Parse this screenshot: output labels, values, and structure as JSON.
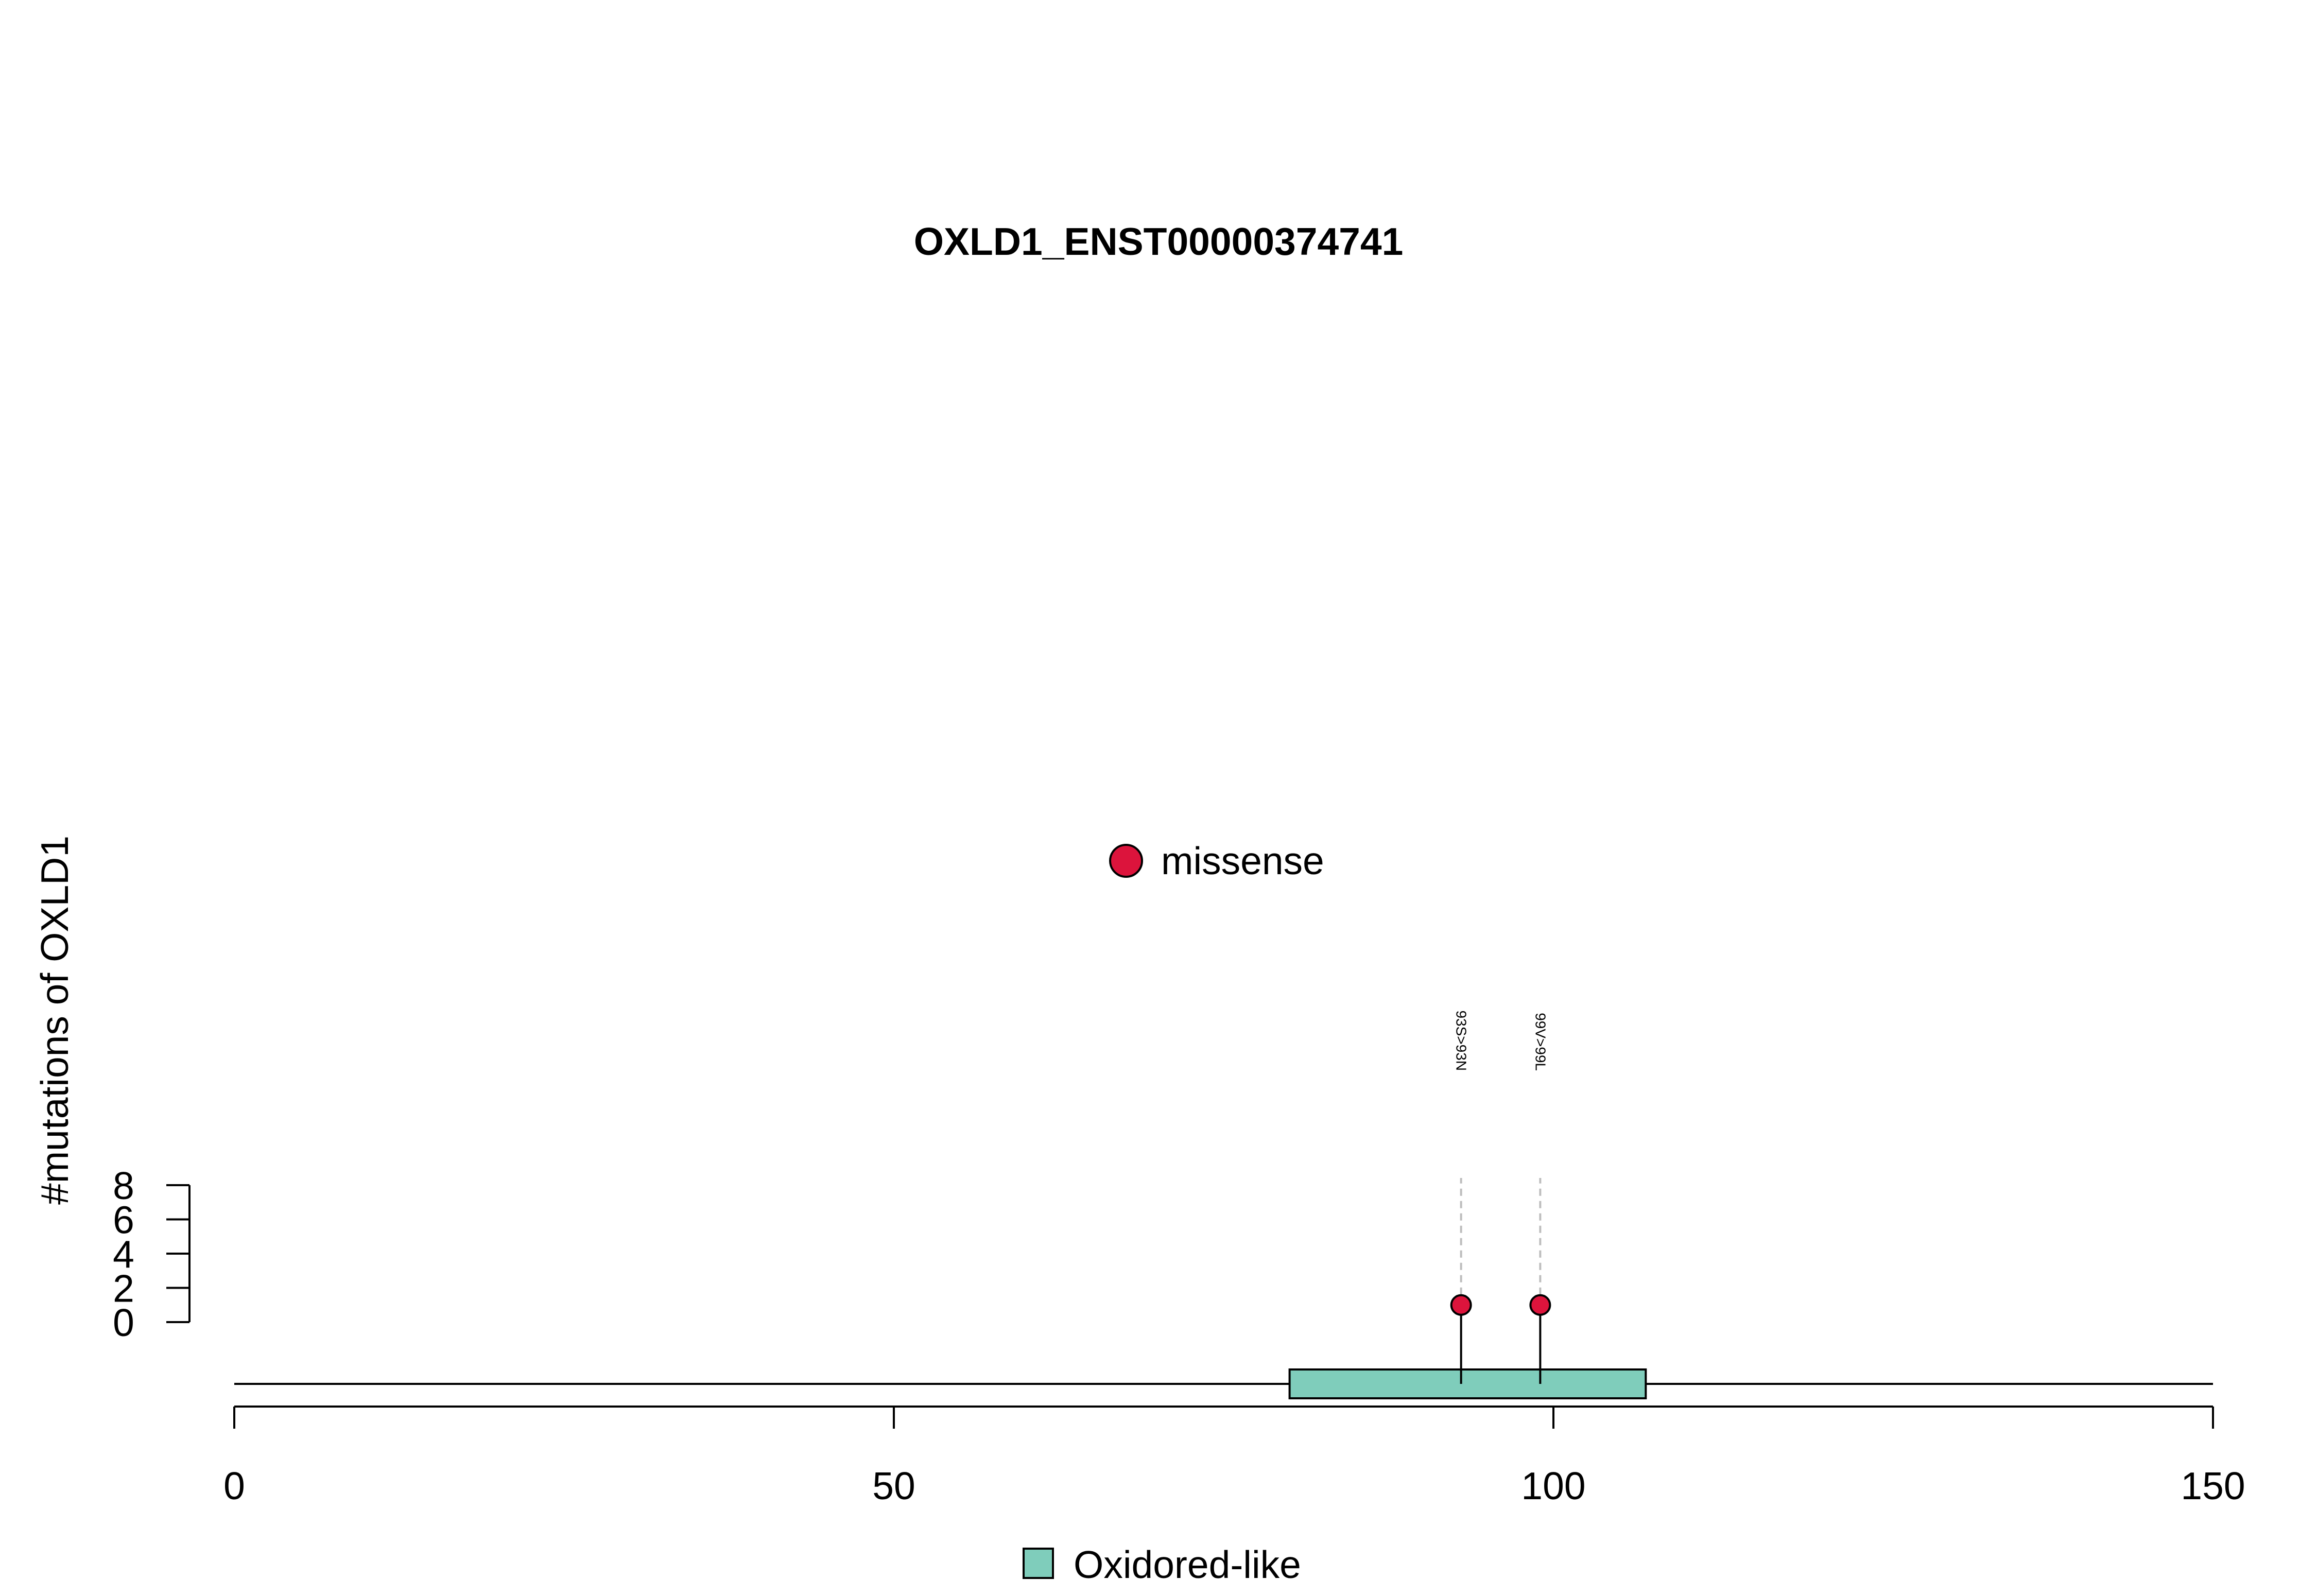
{
  "chart_data": {
    "type": "lollipop",
    "title": "OXLD1_ENST00000374741",
    "xlabel": "",
    "ylabel": "#mutations of OXLD1",
    "xlim": [
      0,
      150
    ],
    "x_ticks": [
      0,
      50,
      100,
      150
    ],
    "ylim": [
      0,
      8
    ],
    "y_ticks": [
      0,
      2,
      4,
      6,
      8
    ],
    "protein_length": 150,
    "domains": [
      {
        "name": "Oxidored-like",
        "start": 80,
        "end": 107,
        "color": "#7fcdbb"
      }
    ],
    "mutations": [
      {
        "label": "93S>93N",
        "position": 93,
        "count": 1,
        "type": "missense"
      },
      {
        "label": "99V>99L",
        "position": 99,
        "count": 1,
        "type": "missense"
      }
    ],
    "mutation_legend": [
      {
        "type": "missense",
        "label": "missense",
        "color": "#dc143c"
      }
    ],
    "domain_legend": [
      {
        "label": "Oxidored-like",
        "color": "#7fcdbb"
      }
    ]
  }
}
